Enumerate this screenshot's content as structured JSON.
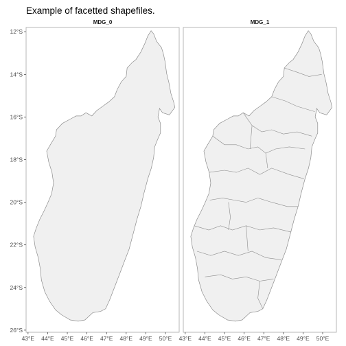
{
  "title": "Example of facetted shapefiles.",
  "facets": [
    {
      "label": "MDG_0"
    },
    {
      "label": "MDG_1"
    }
  ],
  "y_axis": {
    "ticks": [
      "12°S",
      "14°S",
      "16°S",
      "18°S",
      "20°S",
      "22°S",
      "24°S",
      "26°S"
    ],
    "lat_values": [
      -12,
      -14,
      -16,
      -18,
      -20,
      -22,
      -24,
      -26
    ]
  },
  "x_axis": {
    "ticks": [
      "43°E",
      "44°E",
      "45°E",
      "46°E",
      "47°E",
      "48°E",
      "49°E",
      "50°E"
    ],
    "lon_values": [
      43,
      44,
      45,
      46,
      47,
      48,
      49,
      50
    ]
  },
  "map": {
    "region": "Madagascar",
    "fill_color": "#f0f0f0",
    "border_color": "#8c8c8c",
    "panel_border_color": "#a6a6a6"
  },
  "chart_data": {
    "type": "map",
    "facets": [
      "MDG_0",
      "MDG_1"
    ],
    "xlim": [
      42.9,
      50.7
    ],
    "ylim": [
      -26.1,
      -11.8
    ],
    "grid": false,
    "outline": [
      [
        49.27,
        -11.95
      ],
      [
        49.4,
        -12.1
      ],
      [
        49.55,
        -12.45
      ],
      [
        49.8,
        -12.75
      ],
      [
        49.9,
        -13.05
      ],
      [
        49.98,
        -13.4
      ],
      [
        50.06,
        -13.95
      ],
      [
        50.18,
        -14.4
      ],
      [
        50.28,
        -14.9
      ],
      [
        50.42,
        -15.3
      ],
      [
        50.48,
        -15.55
      ],
      [
        50.2,
        -15.9
      ],
      [
        49.85,
        -15.8
      ],
      [
        49.7,
        -15.6
      ],
      [
        49.62,
        -16.0
      ],
      [
        49.75,
        -16.3
      ],
      [
        49.75,
        -16.75
      ],
      [
        49.6,
        -17.05
      ],
      [
        49.45,
        -17.4
      ],
      [
        49.4,
        -17.9
      ],
      [
        49.28,
        -18.4
      ],
      [
        49.1,
        -18.9
      ],
      [
        48.9,
        -19.6
      ],
      [
        48.75,
        -20.2
      ],
      [
        48.55,
        -20.8
      ],
      [
        48.35,
        -21.5
      ],
      [
        48.15,
        -22.2
      ],
      [
        47.9,
        -22.8
      ],
      [
        47.65,
        -23.4
      ],
      [
        47.4,
        -24.0
      ],
      [
        47.15,
        -24.6
      ],
      [
        46.95,
        -25.0
      ],
      [
        46.7,
        -25.12
      ],
      [
        46.3,
        -25.18
      ],
      [
        45.9,
        -25.52
      ],
      [
        45.55,
        -25.58
      ],
      [
        45.15,
        -25.52
      ],
      [
        44.7,
        -25.28
      ],
      [
        44.4,
        -25.05
      ],
      [
        44.1,
        -24.65
      ],
      [
        43.85,
        -24.2
      ],
      [
        43.68,
        -23.65
      ],
      [
        43.62,
        -23.1
      ],
      [
        43.52,
        -22.6
      ],
      [
        43.36,
        -22.1
      ],
      [
        43.28,
        -21.6
      ],
      [
        43.42,
        -21.2
      ],
      [
        43.6,
        -20.8
      ],
      [
        43.82,
        -20.4
      ],
      [
        44.02,
        -20.0
      ],
      [
        44.2,
        -19.6
      ],
      [
        44.3,
        -19.1
      ],
      [
        44.22,
        -18.6
      ],
      [
        44.05,
        -18.1
      ],
      [
        43.95,
        -17.6
      ],
      [
        44.2,
        -17.2
      ],
      [
        44.4,
        -16.9
      ],
      [
        44.45,
        -16.6
      ],
      [
        44.75,
        -16.3
      ],
      [
        45.15,
        -16.1
      ],
      [
        45.45,
        -15.95
      ],
      [
        45.7,
        -15.95
      ],
      [
        45.95,
        -15.8
      ],
      [
        46.25,
        -15.95
      ],
      [
        46.5,
        -15.7
      ],
      [
        46.8,
        -15.5
      ],
      [
        47.1,
        -15.3
      ],
      [
        47.4,
        -15.05
      ],
      [
        47.55,
        -14.7
      ],
      [
        47.75,
        -14.35
      ],
      [
        48.0,
        -14.1
      ],
      [
        48.05,
        -13.7
      ],
      [
        48.3,
        -13.45
      ],
      [
        48.5,
        -13.3
      ],
      [
        48.75,
        -12.95
      ],
      [
        48.95,
        -12.55
      ],
      [
        49.1,
        -12.2
      ],
      [
        49.27,
        -11.95
      ]
    ]
  }
}
